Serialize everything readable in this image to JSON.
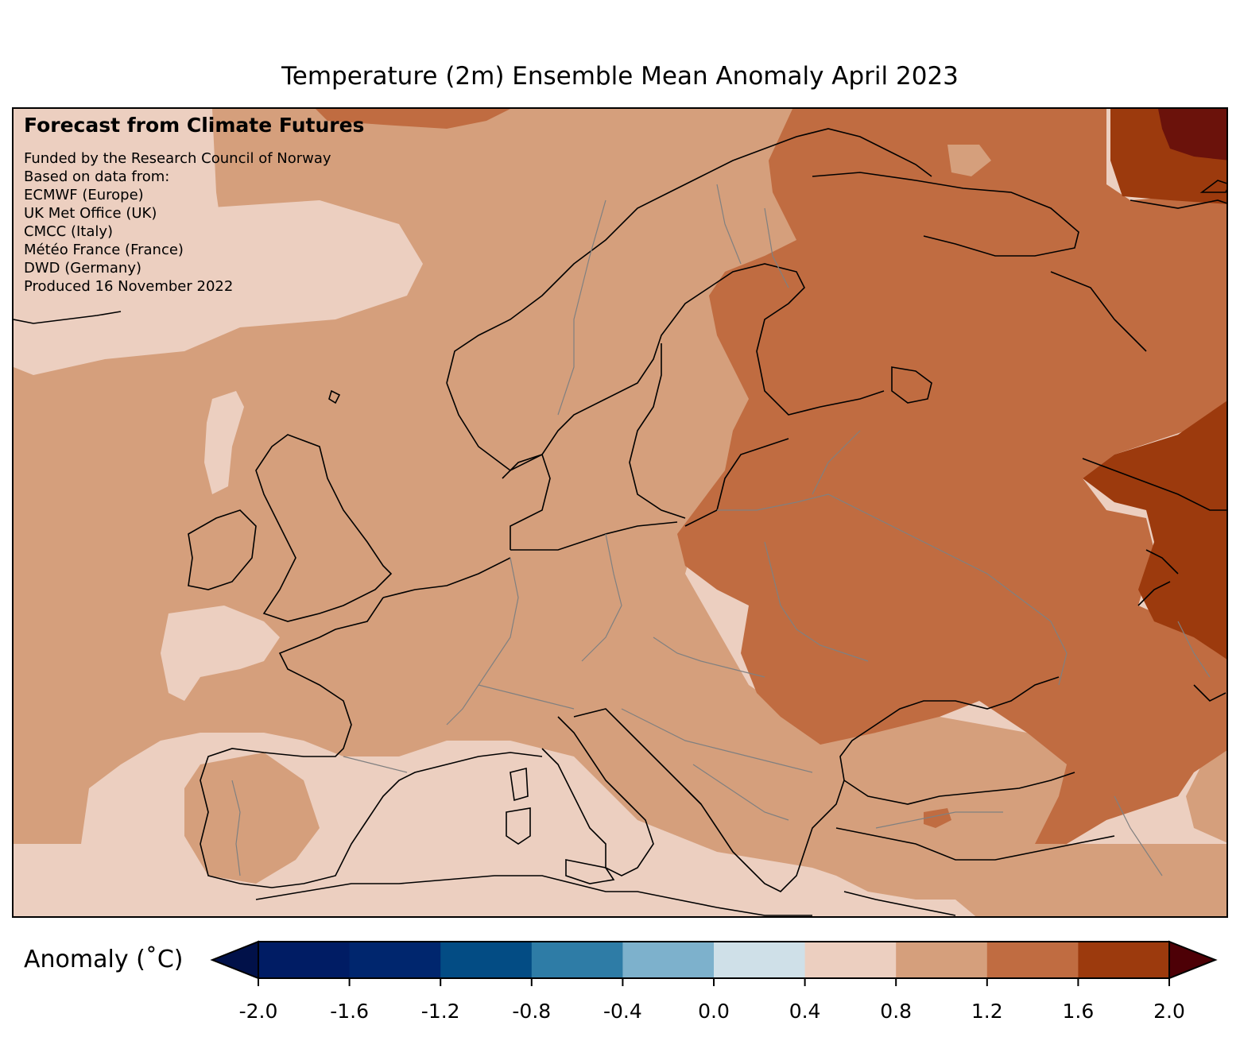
{
  "title": "Temperature (2m) Ensemble Mean Anomaly April 2023",
  "info": {
    "heading": "Forecast from Climate Futures",
    "lines": [
      "Funded by the Research Council of Norway",
      "Based on data from:",
      "ECMWF (Europe)",
      "UK Met Office (UK)",
      "CMCC (Italy)",
      "Météo France (France)",
      "DWD (Germany)",
      "Produced 16 November 2022"
    ]
  },
  "colorbar": {
    "label": "Anomaly (˚C)",
    "ticks": [
      "-2.0",
      "-1.6",
      "-1.2",
      "-0.8",
      "-0.4",
      "0.0",
      "0.4",
      "0.8",
      "1.2",
      "1.6",
      "2.0"
    ],
    "colors": [
      "#001c64",
      "#00266e",
      "#034c84",
      "#2e7ca6",
      "#7db1cc",
      "#cfe0e8",
      "#eccfc0",
      "#d59f7c",
      "#c06c41",
      "#9c3a0d",
      "#6b120b"
    ],
    "under_color": "#011149",
    "over_color": "#4d0006"
  },
  "map_colors": {
    "class_0_0_0_4": "#eccfc0",
    "class_0_4_0_8": "#d59f7c",
    "class_0_8_1_2": "#c06c41",
    "class_1_2_1_6": "#9c3a0d",
    "class_1_6_2_0": "#6b120b",
    "coastline": "#000000",
    "borders": "#808080"
  }
}
